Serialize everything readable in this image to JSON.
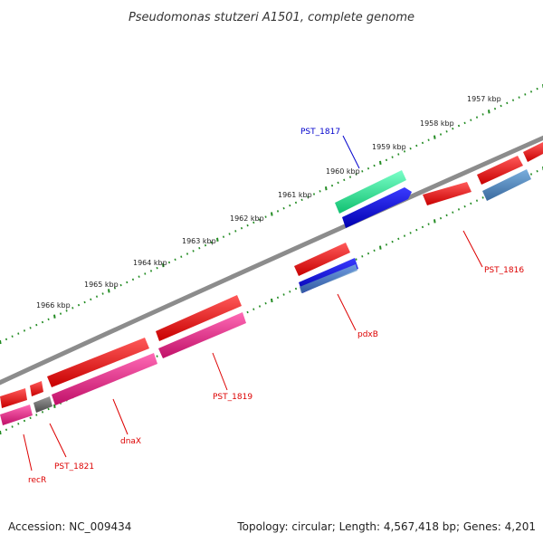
{
  "title": "Pseudomonas stutzeri A1501, complete genome",
  "footer": {
    "accession": "Accession: NC_009434",
    "summary": "Topology: circular; Length: 4,567,418 bp; Genes: 4,201"
  },
  "ruler": {
    "labels": [
      "1957 kbp",
      "1958 kbp",
      "1959 kbp",
      "1960 kbp",
      "1961 kbp",
      "1962 kbp",
      "1963 kbp",
      "1964 kbp",
      "1965 kbp",
      "1966 kbp"
    ],
    "tick_color": "#228b22"
  },
  "colors": {
    "backbone": "#8c8c8c",
    "forward_gene": "#e00000",
    "cds_magenta": "#e0207f",
    "cds_blue": "#0000d8",
    "cds_steel": "#4a7fb5",
    "cds_teal": "#1fe08f",
    "cds_grey": "#666666",
    "label_red": "#dd0000",
    "label_blue": "#0000cc"
  },
  "gene_labels": [
    {
      "text": "PST_1817",
      "color": "blue"
    },
    {
      "text": "PST_1816",
      "color": "red"
    },
    {
      "text": "pdxB",
      "color": "red"
    },
    {
      "text": "PST_1819",
      "color": "red"
    },
    {
      "text": "dnaX",
      "color": "red"
    },
    {
      "text": "PST_1821",
      "color": "red"
    },
    {
      "text": "recR",
      "color": "red"
    }
  ]
}
